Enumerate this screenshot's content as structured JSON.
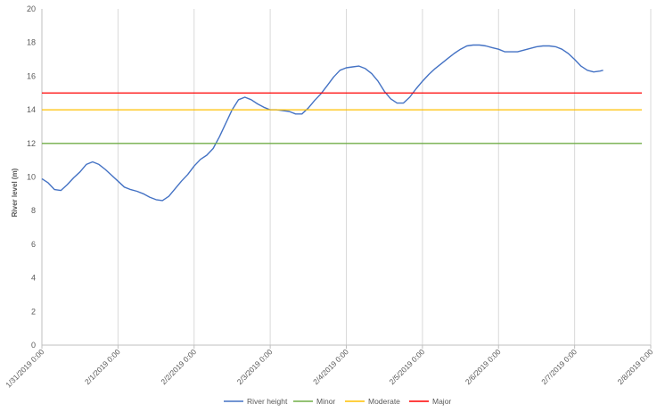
{
  "chart_data": {
    "type": "line",
    "title": "",
    "xlabel": "",
    "ylabel": "River level (m)",
    "ylim": [
      0,
      20
    ],
    "yticks": [
      0,
      2,
      4,
      6,
      8,
      10,
      12,
      14,
      16,
      18,
      20
    ],
    "xlim": [
      "1/31/2019 0:00",
      "2/8/2019 0:00"
    ],
    "x_tick_labels": [
      "1/31/2019 0:00",
      "2/1/2019 0:00",
      "2/2/2019 0:00",
      "2/3/2019 0:00",
      "2/4/2019 0:00",
      "2/5/2019 0:00",
      "2/6/2019 0:00",
      "2/7/2019 0:00",
      "2/8/2019 0:00"
    ],
    "grid": "vertical major gridlines",
    "legend_position": "bottom",
    "series": [
      {
        "name": "River height",
        "color": "#4472C4",
        "points": [
          [
            "1/31/2019 0:00",
            9.9
          ],
          [
            "1/31/2019 2:00",
            9.65
          ],
          [
            "1/31/2019 4:00",
            9.25
          ],
          [
            "1/31/2019 6:00",
            9.2
          ],
          [
            "1/31/2019 8:00",
            9.55
          ],
          [
            "1/31/2019 10:00",
            9.95
          ],
          [
            "1/31/2019 12:00",
            10.3
          ],
          [
            "1/31/2019 14:00",
            10.75
          ],
          [
            "1/31/2019 16:00",
            10.9
          ],
          [
            "1/31/2019 18:00",
            10.75
          ],
          [
            "1/31/2019 20:00",
            10.45
          ],
          [
            "1/31/2019 22:00",
            10.1
          ],
          [
            "2/1/2019 0:00",
            9.75
          ],
          [
            "2/1/2019 2:00",
            9.4
          ],
          [
            "2/1/2019 4:00",
            9.25
          ],
          [
            "2/1/2019 6:00",
            9.15
          ],
          [
            "2/1/2019 8:00",
            9.0
          ],
          [
            "2/1/2019 10:00",
            8.8
          ],
          [
            "2/1/2019 12:00",
            8.65
          ],
          [
            "2/1/2019 14:00",
            8.6
          ],
          [
            "2/1/2019 16:00",
            8.85
          ],
          [
            "2/1/2019 18:00",
            9.3
          ],
          [
            "2/1/2019 20:00",
            9.75
          ],
          [
            "2/1/2019 22:00",
            10.15
          ],
          [
            "2/2/2019 0:00",
            10.65
          ],
          [
            "2/2/2019 2:00",
            11.05
          ],
          [
            "2/2/2019 4:00",
            11.3
          ],
          [
            "2/2/2019 6:00",
            11.7
          ],
          [
            "2/2/2019 8:00",
            12.4
          ],
          [
            "2/2/2019 10:00",
            13.2
          ],
          [
            "2/2/2019 12:00",
            14.0
          ],
          [
            "2/2/2019 14:00",
            14.6
          ],
          [
            "2/2/2019 16:00",
            14.75
          ],
          [
            "2/2/2019 18:00",
            14.6
          ],
          [
            "2/2/2019 20:00",
            14.35
          ],
          [
            "2/2/2019 22:00",
            14.15
          ],
          [
            "2/3/2019 0:00",
            14.0
          ],
          [
            "2/3/2019 2:00",
            14.0
          ],
          [
            "2/3/2019 4:00",
            13.95
          ],
          [
            "2/3/2019 6:00",
            13.9
          ],
          [
            "2/3/2019 8:00",
            13.75
          ],
          [
            "2/3/2019 10:00",
            13.75
          ],
          [
            "2/3/2019 12:00",
            14.1
          ],
          [
            "2/3/2019 14:00",
            14.55
          ],
          [
            "2/3/2019 16:00",
            14.95
          ],
          [
            "2/3/2019 18:00",
            15.45
          ],
          [
            "2/3/2019 20:00",
            15.95
          ],
          [
            "2/3/2019 22:00",
            16.35
          ],
          [
            "2/4/2019 0:00",
            16.5
          ],
          [
            "2/4/2019 2:00",
            16.55
          ],
          [
            "2/4/2019 4:00",
            16.6
          ],
          [
            "2/4/2019 6:00",
            16.45
          ],
          [
            "2/4/2019 8:00",
            16.15
          ],
          [
            "2/4/2019 10:00",
            15.7
          ],
          [
            "2/4/2019 12:00",
            15.1
          ],
          [
            "2/4/2019 14:00",
            14.65
          ],
          [
            "2/4/2019 16:00",
            14.4
          ],
          [
            "2/4/2019 18:00",
            14.4
          ],
          [
            "2/4/2019 20:00",
            14.75
          ],
          [
            "2/4/2019 22:00",
            15.25
          ],
          [
            "2/5/2019 0:00",
            15.7
          ],
          [
            "2/5/2019 2:00",
            16.1
          ],
          [
            "2/5/2019 4:00",
            16.45
          ],
          [
            "2/5/2019 6:00",
            16.75
          ],
          [
            "2/5/2019 8:00",
            17.05
          ],
          [
            "2/5/2019 10:00",
            17.35
          ],
          [
            "2/5/2019 12:00",
            17.6
          ],
          [
            "2/5/2019 14:00",
            17.8
          ],
          [
            "2/5/2019 16:00",
            17.85
          ],
          [
            "2/5/2019 18:00",
            17.85
          ],
          [
            "2/5/2019 20:00",
            17.8
          ],
          [
            "2/5/2019 22:00",
            17.7
          ],
          [
            "2/6/2019 0:00",
            17.6
          ],
          [
            "2/6/2019 2:00",
            17.45
          ],
          [
            "2/6/2019 4:00",
            17.45
          ],
          [
            "2/6/2019 6:00",
            17.45
          ],
          [
            "2/6/2019 8:00",
            17.55
          ],
          [
            "2/6/2019 10:00",
            17.65
          ],
          [
            "2/6/2019 12:00",
            17.75
          ],
          [
            "2/6/2019 14:00",
            17.8
          ],
          [
            "2/6/2019 16:00",
            17.8
          ],
          [
            "2/6/2019 18:00",
            17.75
          ],
          [
            "2/6/2019 20:00",
            17.6
          ],
          [
            "2/6/2019 22:00",
            17.35
          ],
          [
            "2/7/2019 0:00",
            17.0
          ],
          [
            "2/7/2019 2:00",
            16.6
          ],
          [
            "2/7/2019 4:00",
            16.35
          ],
          [
            "2/7/2019 6:00",
            16.25
          ],
          [
            "2/7/2019 8:00",
            16.3
          ],
          [
            "2/7/2019 9:00",
            16.35
          ]
        ]
      },
      {
        "name": "Minor",
        "color": "#70AD47",
        "constant": 12
      },
      {
        "name": "Moderate",
        "color": "#FFC000",
        "constant": 14
      },
      {
        "name": "Major",
        "color": "#FF0000",
        "constant": 15
      }
    ]
  }
}
